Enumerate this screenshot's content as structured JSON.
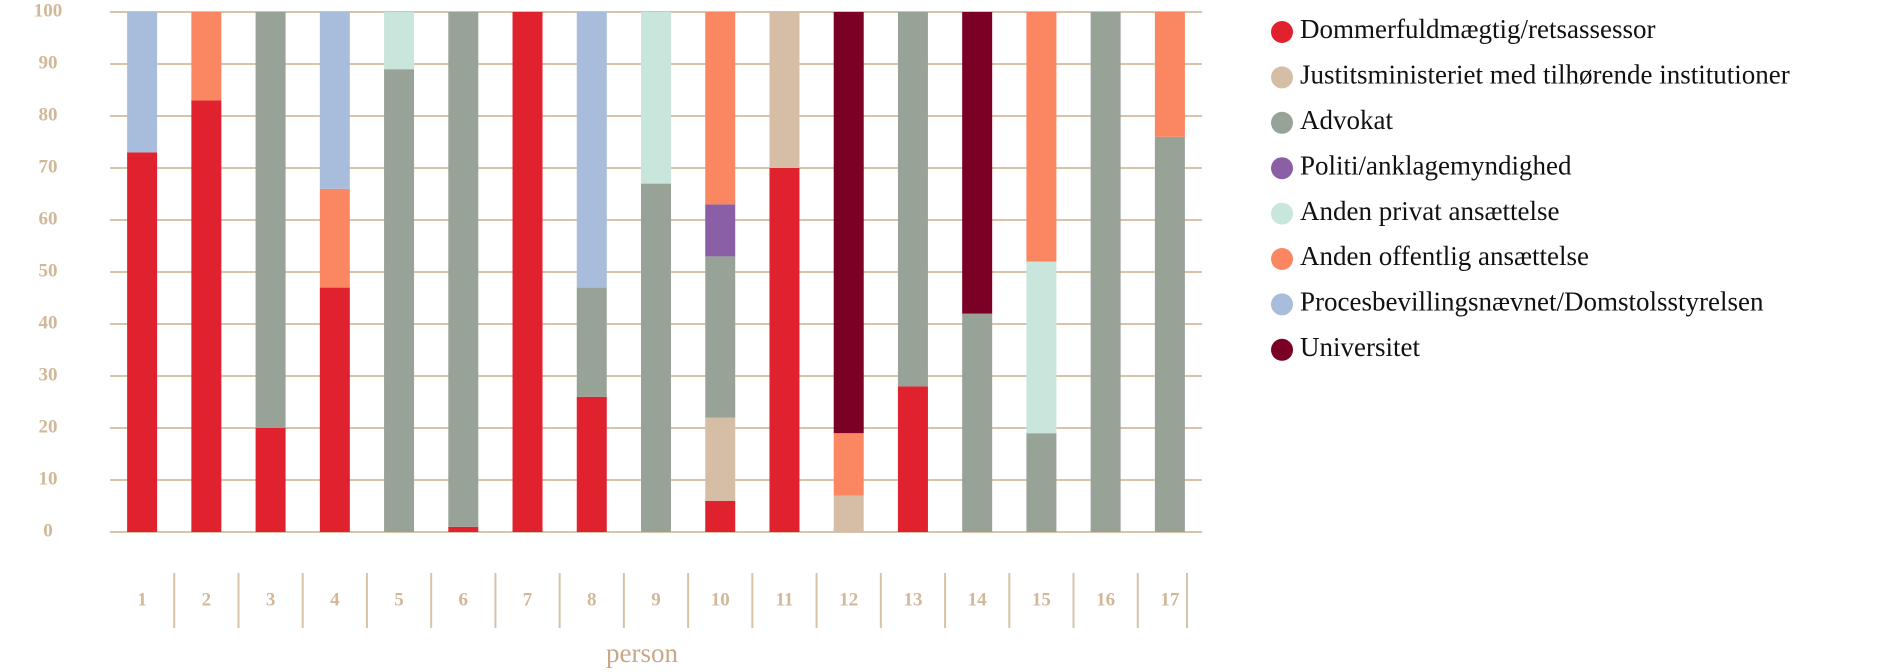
{
  "chart_data": {
    "type": "stacked_bar",
    "x_label": "person",
    "categories": [
      "1",
      "2",
      "3",
      "4",
      "5",
      "6",
      "7",
      "8",
      "9",
      "10",
      "11",
      "12",
      "13",
      "14",
      "15",
      "16",
      "17"
    ],
    "series": [
      {
        "name": "Dommerfuldmægtig/retsassessor",
        "color": "#e0222e",
        "values": [
          73,
          83,
          20,
          47,
          null,
          1,
          100,
          26,
          null,
          6,
          70,
          null,
          28,
          null,
          null,
          null,
          null
        ]
      },
      {
        "name": "Justitsministeriet med tilhørende institutioner",
        "color": "#d6bea6",
        "values": [
          null,
          null,
          null,
          null,
          null,
          null,
          null,
          null,
          null,
          16,
          30,
          7,
          null,
          null,
          null,
          null,
          null
        ]
      },
      {
        "name": "Advokat",
        "color": "#98a398",
        "values": [
          null,
          null,
          80,
          null,
          89,
          99,
          null,
          21,
          67,
          31,
          null,
          null,
          72,
          42,
          19,
          100,
          76
        ]
      },
      {
        "name": "Politi/anklagemyndighed",
        "color": "#8a5fa5",
        "values": [
          null,
          null,
          null,
          null,
          null,
          null,
          null,
          null,
          null,
          10,
          null,
          null,
          null,
          null,
          null,
          null,
          null
        ]
      },
      {
        "name": "Anden privat ansættelse",
        "color": "#c8e6dc",
        "values": [
          null,
          null,
          null,
          null,
          11,
          null,
          null,
          null,
          33,
          null,
          null,
          null,
          null,
          null,
          33,
          null,
          null
        ]
      },
      {
        "name": "Anden offentlig ansættelse",
        "color": "#fb8762",
        "values": [
          null,
          17,
          null,
          19,
          null,
          null,
          null,
          null,
          null,
          37,
          null,
          12,
          null,
          null,
          48,
          null,
          24
        ]
      },
      {
        "name": "Procesbevillingsnævnet/Domstolsstyrelsen",
        "color": "#a8bcdc",
        "values": [
          27,
          null,
          null,
          34,
          null,
          null,
          null,
          53,
          null,
          null,
          null,
          null,
          null,
          null,
          null,
          null,
          null
        ]
      },
      {
        "name": "Universitet",
        "color": "#7a0026",
        "values": [
          null,
          null,
          null,
          null,
          null,
          null,
          null,
          null,
          null,
          null,
          null,
          81,
          null,
          58,
          null,
          null,
          null
        ]
      }
    ],
    "ylim": [
      0,
      100
    ],
    "yticks": [
      0,
      10,
      20,
      30,
      40,
      50,
      60,
      70,
      80,
      90,
      100
    ],
    "grid": true,
    "legend": "right"
  }
}
